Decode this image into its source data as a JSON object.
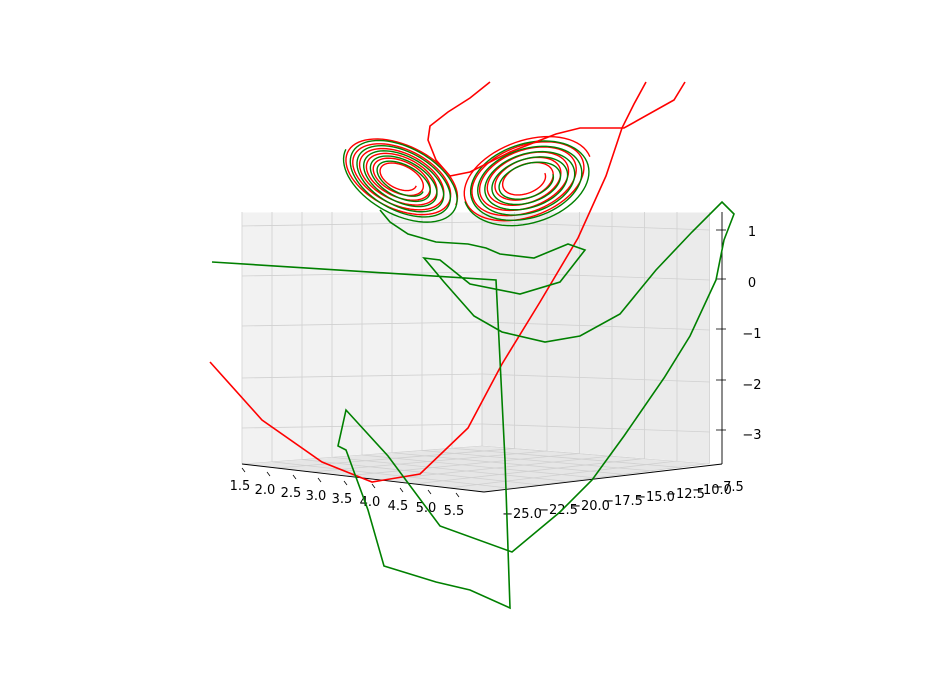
{
  "chart_data": {
    "type": "line3d",
    "title": "",
    "xlabel": "",
    "ylabel": "",
    "zlabel": "",
    "x_ticks": [
      "1.5",
      "2.0",
      "2.5",
      "3.0",
      "3.5",
      "4.0",
      "4.5",
      "5.0",
      "5.5"
    ],
    "y_ticks": [
      "−25.0",
      "−22.5",
      "−20.0",
      "−17.5",
      "−15.0",
      "−12.5",
      "−10.0",
      "−7.5"
    ],
    "z_ticks": [
      "1",
      "0",
      "−1",
      "−2",
      "−3"
    ],
    "xlim": [
      1.5,
      5.5
    ],
    "ylim": [
      -25.0,
      -7.5
    ],
    "zlim": [
      -3.6,
      1.3
    ],
    "grid": true,
    "legend": "none",
    "series": [
      {
        "color": "#ff0000",
        "points": [
          [
            210,
            362
          ],
          [
            262,
            420
          ],
          [
            322,
            462
          ],
          [
            372,
            482
          ],
          [
            420,
            474
          ],
          [
            468,
            428
          ],
          [
            502,
            364
          ],
          [
            540,
            302
          ],
          [
            578,
            238
          ],
          [
            606,
            176
          ],
          [
            622,
            128
          ],
          [
            634,
            104
          ],
          [
            646,
            82
          ]
        ],
        "segments": [
          [
            [
              685,
              82
            ],
            [
              674,
              100
            ],
            [
              624,
              128
            ],
            [
              580,
              128
            ],
            [
              556,
              134
            ],
            [
              510,
              152
            ],
            [
              470,
              172
            ],
            [
              450,
              176
            ],
            [
              436,
              160
            ],
            [
              428,
              140
            ],
            [
              430,
              126
            ],
            [
              448,
              112
            ],
            [
              470,
              98
            ],
            [
              490,
              82
            ]
          ]
        ]
      },
      {
        "color": "#008000",
        "points": [
          [
            212,
            262
          ],
          [
            496,
            280
          ],
          [
            500,
            360
          ],
          [
            505,
            460
          ],
          [
            510,
            608
          ],
          [
            470,
            590
          ],
          [
            436,
            582
          ],
          [
            384,
            566
          ],
          [
            368,
            510
          ],
          [
            346,
            450
          ],
          [
            338,
            446
          ],
          [
            346,
            410
          ],
          [
            388,
            456
          ],
          [
            440,
            526
          ],
          [
            512,
            552
          ],
          [
            560,
            512
          ],
          [
            592,
            480
          ],
          [
            624,
            436
          ],
          [
            664,
            378
          ],
          [
            690,
            336
          ],
          [
            716,
            280
          ],
          [
            724,
            240
          ],
          [
            734,
            214
          ],
          [
            722,
            202
          ],
          [
            692,
            232
          ],
          [
            656,
            270
          ],
          [
            620,
            314
          ],
          [
            580,
            336
          ],
          [
            545,
            342
          ],
          [
            502,
            332
          ],
          [
            474,
            316
          ],
          [
            444,
            282
          ],
          [
            424,
            258
          ],
          [
            440,
            260
          ],
          [
            470,
            284
          ],
          [
            520,
            294
          ],
          [
            560,
            282
          ],
          [
            585,
            250
          ],
          [
            568,
            244
          ],
          [
            534,
            258
          ],
          [
            500,
            254
          ],
          [
            486,
            248
          ],
          [
            468,
            244
          ],
          [
            436,
            242
          ],
          [
            408,
            234
          ],
          [
            390,
            222
          ],
          [
            380,
            210
          ]
        ]
      }
    ],
    "attractor_color_red": "#ff0000",
    "attractor_color_green": "#008000"
  }
}
